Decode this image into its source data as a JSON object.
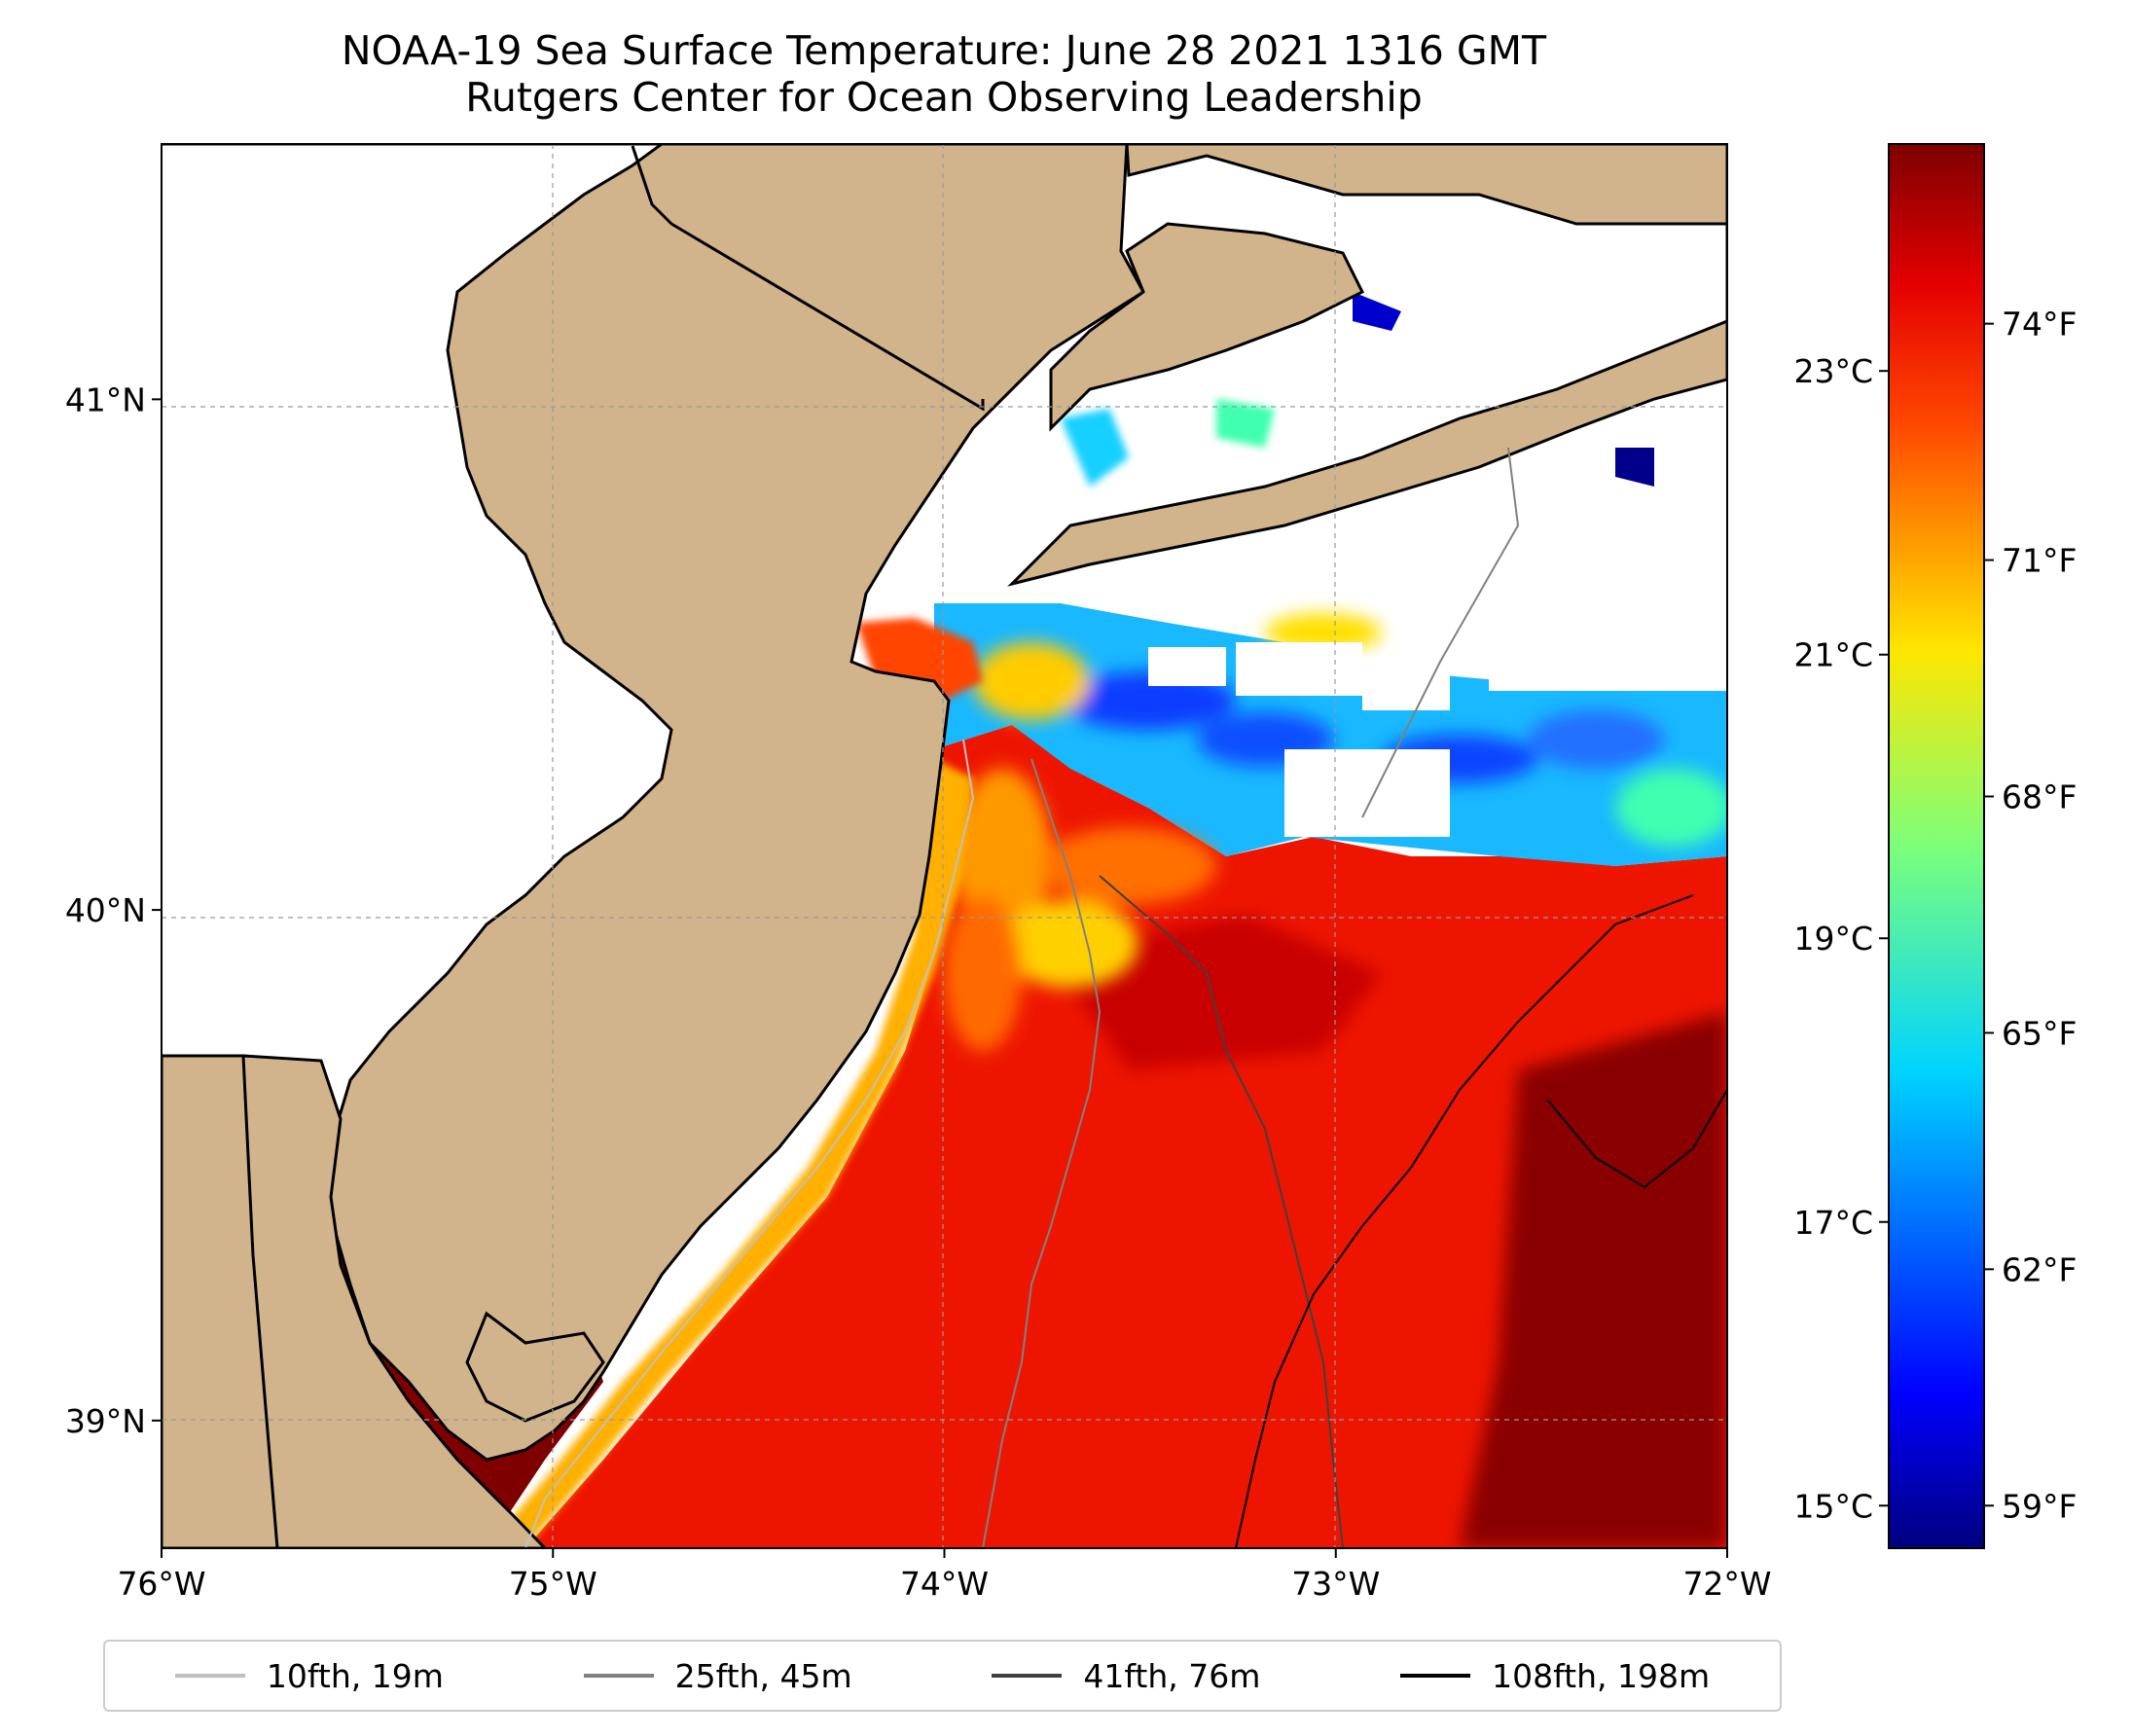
{
  "title": {
    "line1": "NOAA-19 Sea Surface Temperature: June 28 2021 1316 GMT",
    "line2": "Rutgers Center for Ocean Observing Leadership"
  },
  "map": {
    "lon_ticks": [
      {
        "value": -76,
        "label": "76°W"
      },
      {
        "value": -75,
        "label": "75°W"
      },
      {
        "value": -74,
        "label": "74°W"
      },
      {
        "value": -73,
        "label": "73°W"
      },
      {
        "value": -72,
        "label": "72°W"
      }
    ],
    "lat_ticks": [
      {
        "value": 41,
        "label": "41°N"
      },
      {
        "value": 40,
        "label": "40°N"
      },
      {
        "value": 39,
        "label": "39°N"
      }
    ],
    "lon_range": [
      -76,
      -72
    ],
    "lat_range": [
      38.75,
      41.5
    ],
    "land_color": "#d2b48c",
    "grid": true
  },
  "colorbar": {
    "colormap": "jet",
    "celsius_ticks": [
      {
        "value": 23,
        "label": "23°C"
      },
      {
        "value": 21,
        "label": "21°C"
      },
      {
        "value": 19,
        "label": "19°C"
      },
      {
        "value": 17,
        "label": "17°C"
      },
      {
        "value": 15,
        "label": "15°C"
      }
    ],
    "fahrenheit_ticks": [
      {
        "value": 74,
        "label": "74°F"
      },
      {
        "value": 71,
        "label": "71°F"
      },
      {
        "value": 68,
        "label": "68°F"
      },
      {
        "value": 65,
        "label": "65°F"
      },
      {
        "value": 62,
        "label": "62°F"
      },
      {
        "value": 59,
        "label": "59°F"
      }
    ],
    "range_c": [
      14.7,
      24.6
    ]
  },
  "legend": [
    {
      "label": "10fth, 19m",
      "color": "#c0c0c0"
    },
    {
      "label": "25fth, 45m",
      "color": "#808080"
    },
    {
      "label": "41fth, 76m",
      "color": "#404040"
    },
    {
      "label": "108fth, 198m",
      "color": "#000000"
    }
  ]
}
